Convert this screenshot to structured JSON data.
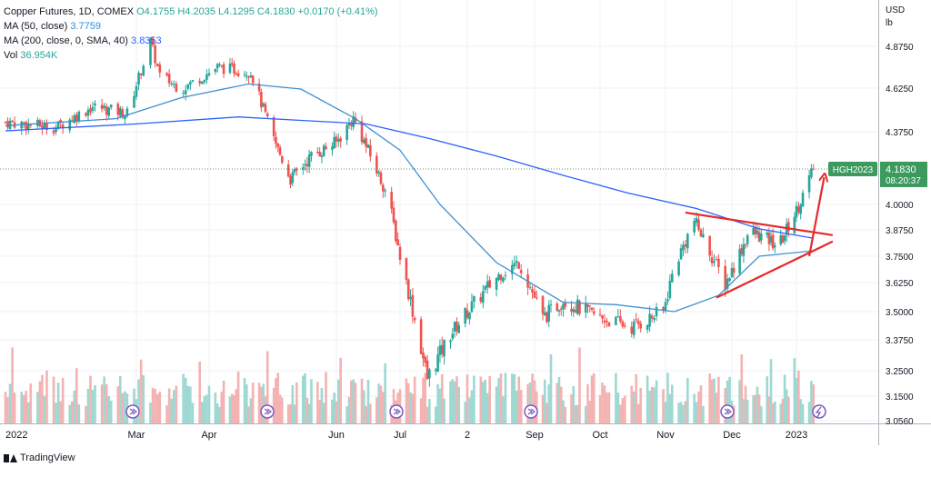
{
  "legend": {
    "main": "Copper Futures, 1D, COMEX",
    "open": "O4.1755",
    "high": "H4.2035",
    "low": "L4.1295",
    "close": "C4.1830",
    "change": "+0.0170 (+0.41%)",
    "ma50_label": "MA (50, close)",
    "ma50_value": "3.7759",
    "ma200_label": "MA (200, close, 0, SMA, 40)",
    "ma200_value": "3.8353",
    "vol_label": "Vol",
    "vol_value": "36.954K"
  },
  "axis": {
    "currency": "USD",
    "unit": "lb"
  },
  "price_tag": {
    "symbol": "HGH2023",
    "price": "4.1830",
    "countdown": "08:20:37"
  },
  "brand": {
    "name": "TradingView"
  },
  "colors": {
    "up": "#26a69a",
    "down": "#ef5350",
    "ma50": "#3f8fd0",
    "ma200": "#2962ff",
    "drawing": "#e62a2a",
    "tag": "#3c9a5f",
    "grid": "#eef0f3"
  },
  "chart_data": {
    "type": "candlestick",
    "title": "Copper Futures, 1D, COMEX",
    "ylabel": "USD / lb",
    "ylim": [
      3.056,
      5.0
    ],
    "y_ticks": [
      "4.8750",
      "4.6250",
      "4.3750",
      "4.0000",
      "3.8750",
      "3.7500",
      "3.6250",
      "3.5000",
      "3.3750",
      "3.2500",
      "3.1500",
      "3.0560"
    ],
    "x_labels": [
      "2022",
      "Mar",
      "Apr",
      "Jun",
      "Jul",
      "2",
      "Sep",
      "Oct",
      "Nov",
      "Dec",
      "2023"
    ],
    "last_price": 4.183,
    "grid": true,
    "series_path": {
      "dates": [
        "2022-01-03",
        "2022-01-25",
        "2022-02-10",
        "2022-02-25",
        "2022-03-07",
        "2022-03-11",
        "2022-03-20",
        "2022-04-05",
        "2022-04-21",
        "2022-05-01",
        "2022-05-10",
        "2022-05-20",
        "2022-06-01",
        "2022-06-09",
        "2022-06-15",
        "2022-06-25",
        "2022-07-01",
        "2022-07-14",
        "2022-07-25",
        "2022-08-02",
        "2022-08-17",
        "2022-08-25",
        "2022-09-05",
        "2022-09-15",
        "2022-10-01",
        "2022-10-17",
        "2022-10-31",
        "2022-11-05",
        "2022-11-14",
        "2022-11-28",
        "2022-12-10",
        "2022-12-25",
        "2023-01-03",
        "2023-01-11"
      ],
      "close": [
        4.43,
        4.4,
        4.52,
        4.48,
        4.9,
        4.7,
        4.62,
        4.75,
        4.72,
        4.36,
        4.13,
        4.25,
        4.32,
        4.45,
        4.3,
        4.05,
        3.75,
        3.22,
        3.4,
        3.5,
        3.67,
        3.72,
        3.47,
        3.55,
        3.48,
        3.43,
        3.5,
        3.7,
        3.92,
        3.62,
        3.87,
        3.8,
        3.97,
        4.183
      ]
    },
    "moving_averages": [
      {
        "name": "MA (50, close)",
        "dates": [
          "2022-01-03",
          "2022-02-20",
          "2022-03-20",
          "2022-04-20",
          "2022-05-15",
          "2022-06-10",
          "2022-07-01",
          "2022-07-20",
          "2022-08-15",
          "2022-09-15",
          "2022-10-10",
          "2022-11-05",
          "2022-11-25",
          "2022-12-15",
          "2023-01-11"
        ],
        "values": [
          4.41,
          4.45,
          4.57,
          4.65,
          4.62,
          4.45,
          4.28,
          4.0,
          3.72,
          3.54,
          3.53,
          3.5,
          3.57,
          3.75,
          3.7759
        ]
      },
      {
        "name": "MA (200, close, 0, SMA, 40)",
        "dates": [
          "2022-01-03",
          "2022-03-01",
          "2022-04-15",
          "2022-05-15",
          "2022-06-15",
          "2022-07-15",
          "2022-08-15",
          "2022-09-15",
          "2022-10-15",
          "2022-11-15",
          "2022-12-15",
          "2023-01-11"
        ],
        "values": [
          4.38,
          4.42,
          4.46,
          4.44,
          4.42,
          4.34,
          4.25,
          4.15,
          4.06,
          3.98,
          3.88,
          3.8353
        ]
      }
    ],
    "trendlines": [
      {
        "from": [
          "2022-11-10",
          3.96
        ],
        "to": [
          "2023-01-20",
          3.85
        ]
      },
      {
        "from": [
          "2022-11-24",
          3.56
        ],
        "to": [
          "2023-01-20",
          3.82
        ]
      },
      {
        "from": [
          "2023-01-09",
          3.75
        ],
        "to": [
          "2023-01-16",
          4.14
        ],
        "arrow": true
      }
    ]
  }
}
